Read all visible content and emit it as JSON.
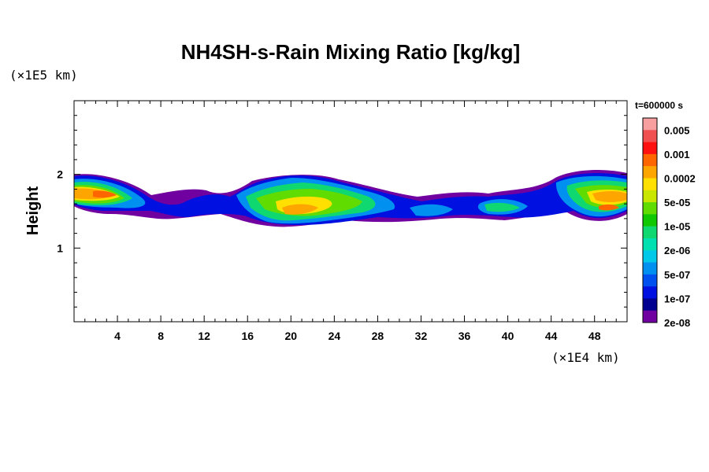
{
  "chart_data": {
    "type": "heatmap",
    "title": "NH4SH-s-Rain Mixing Ratio [kg/kg]",
    "xlabel": "",
    "ylabel": "Height",
    "x_unit": "(×1E4 km)",
    "y_unit": "(×1E5 km)",
    "time_label": "t=600000 s",
    "xlim": [
      0,
      51
    ],
    "ylim": [
      0,
      3
    ],
    "x_ticks": [
      "4",
      "8",
      "12",
      "16",
      "20",
      "24",
      "28",
      "32",
      "36",
      "40",
      "44",
      "48"
    ],
    "x_tick_values": [
      4,
      8,
      12,
      16,
      20,
      24,
      28,
      32,
      36,
      40,
      44,
      48
    ],
    "y_ticks": [
      "1",
      "2"
    ],
    "y_tick_values": [
      1,
      2
    ],
    "colorbar": {
      "labels": [
        "0.005",
        "0.001",
        "0.0002",
        "5e-05",
        "1e-05",
        "2e-06",
        "5e-07",
        "1e-07",
        "2e-08"
      ],
      "colors": [
        "#f8a0a0",
        "#f05050",
        "#ff1010",
        "#ff6600",
        "#ffa500",
        "#ffe000",
        "#c8e600",
        "#60dc00",
        "#10c800",
        "#10d870",
        "#00e0b0",
        "#00c8e8",
        "#0090f0",
        "#0050f0",
        "#0010e0",
        "#000090",
        "#7000a0"
      ]
    },
    "field_description_layers": [
      {
        "level": "2e-08",
        "color": "#7000a0"
      },
      {
        "level": "1e-07",
        "color": "#0010e0"
      },
      {
        "level": "5e-07",
        "color": "#0090f0"
      },
      {
        "level": "2e-06",
        "color": "#10d870"
      },
      {
        "level": "1e-05",
        "color": "#60dc00"
      },
      {
        "level": "5e-05",
        "color": "#ffe000"
      },
      {
        "level": "0.0002",
        "color": "#ffa500"
      },
      {
        "level": "0.001",
        "color": "#ff6600"
      }
    ]
  }
}
